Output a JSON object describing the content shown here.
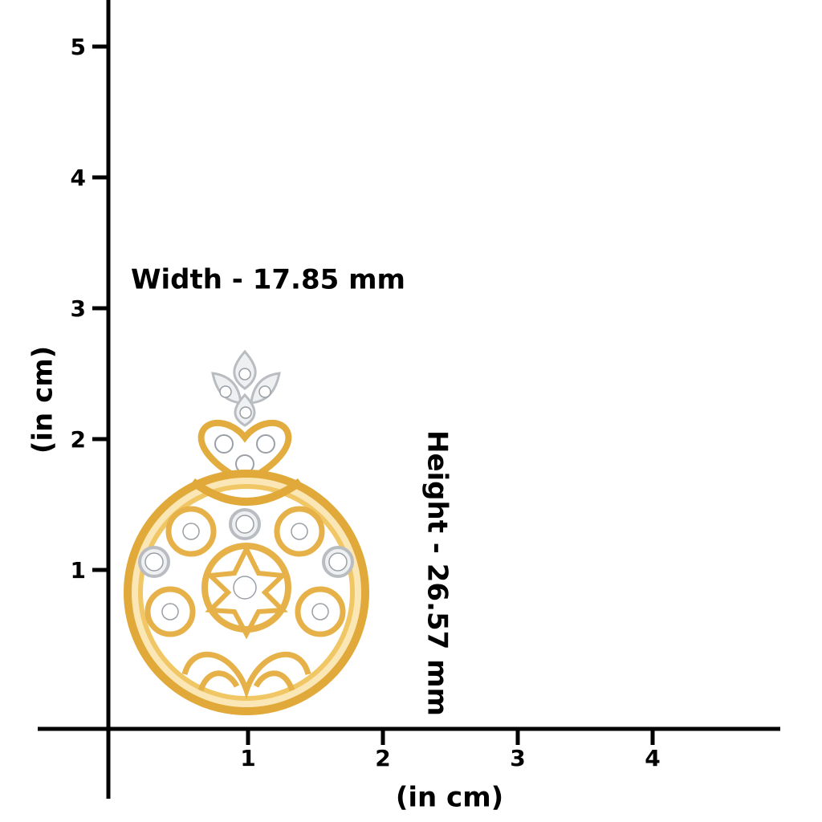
{
  "y_axis": {
    "ticks": [
      1,
      2,
      3,
      4,
      5
    ],
    "label": "(in cm)"
  },
  "x_axis": {
    "ticks": [
      1,
      2,
      3,
      4
    ],
    "label": "(in cm)"
  },
  "width_label": "Width - 17.85 mm",
  "height_label": "Height - 26.57 mm"
}
